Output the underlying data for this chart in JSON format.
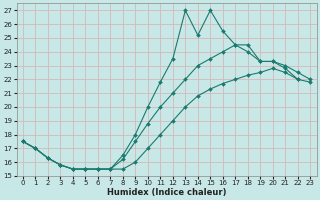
{
  "xlabel": "Humidex (Indice chaleur)",
  "bg_color": "#c8e8e8",
  "line_color": "#1a7a6e",
  "grid_color": "#d4b8b8",
  "xlim": [
    -0.5,
    23.5
  ],
  "ylim": [
    15,
    27.5
  ],
  "figsize": [
    3.2,
    2.0
  ],
  "dpi": 100,
  "line_peak_x": [
    0,
    1,
    2,
    3,
    4,
    5,
    6,
    7,
    8,
    9,
    10,
    11,
    12,
    13,
    14,
    15,
    16,
    17,
    18,
    19,
    20,
    21,
    22
  ],
  "line_peak_y": [
    17.5,
    17.0,
    16.3,
    15.8,
    15.5,
    15.5,
    15.5,
    15.5,
    16.5,
    18.0,
    20.0,
    21.8,
    23.5,
    27.0,
    25.2,
    27.0,
    25.5,
    24.5,
    24.0,
    23.3,
    23.3,
    22.8,
    22.0
  ],
  "line_mid_x": [
    0,
    1,
    2,
    3,
    4,
    5,
    6,
    7,
    8,
    9,
    10,
    11,
    12,
    13,
    14,
    15,
    16,
    17,
    18,
    19,
    20,
    21,
    22,
    23
  ],
  "line_mid_y": [
    17.5,
    17.0,
    16.3,
    15.8,
    15.5,
    15.5,
    15.5,
    15.5,
    16.2,
    17.5,
    18.8,
    20.0,
    21.0,
    22.0,
    23.0,
    23.5,
    24.0,
    24.5,
    24.5,
    23.3,
    23.3,
    23.0,
    22.5,
    22.0
  ],
  "line_min_x": [
    0,
    1,
    2,
    3,
    4,
    5,
    6,
    7,
    8,
    9,
    10,
    11,
    12,
    13,
    14,
    15,
    16,
    17,
    18,
    19,
    20,
    21,
    22,
    23
  ],
  "line_min_y": [
    17.5,
    17.0,
    16.3,
    15.8,
    15.5,
    15.5,
    15.5,
    15.5,
    15.5,
    16.0,
    17.0,
    18.0,
    19.0,
    20.0,
    20.8,
    21.3,
    21.7,
    22.0,
    22.3,
    22.5,
    22.8,
    22.5,
    22.0,
    21.8
  ]
}
